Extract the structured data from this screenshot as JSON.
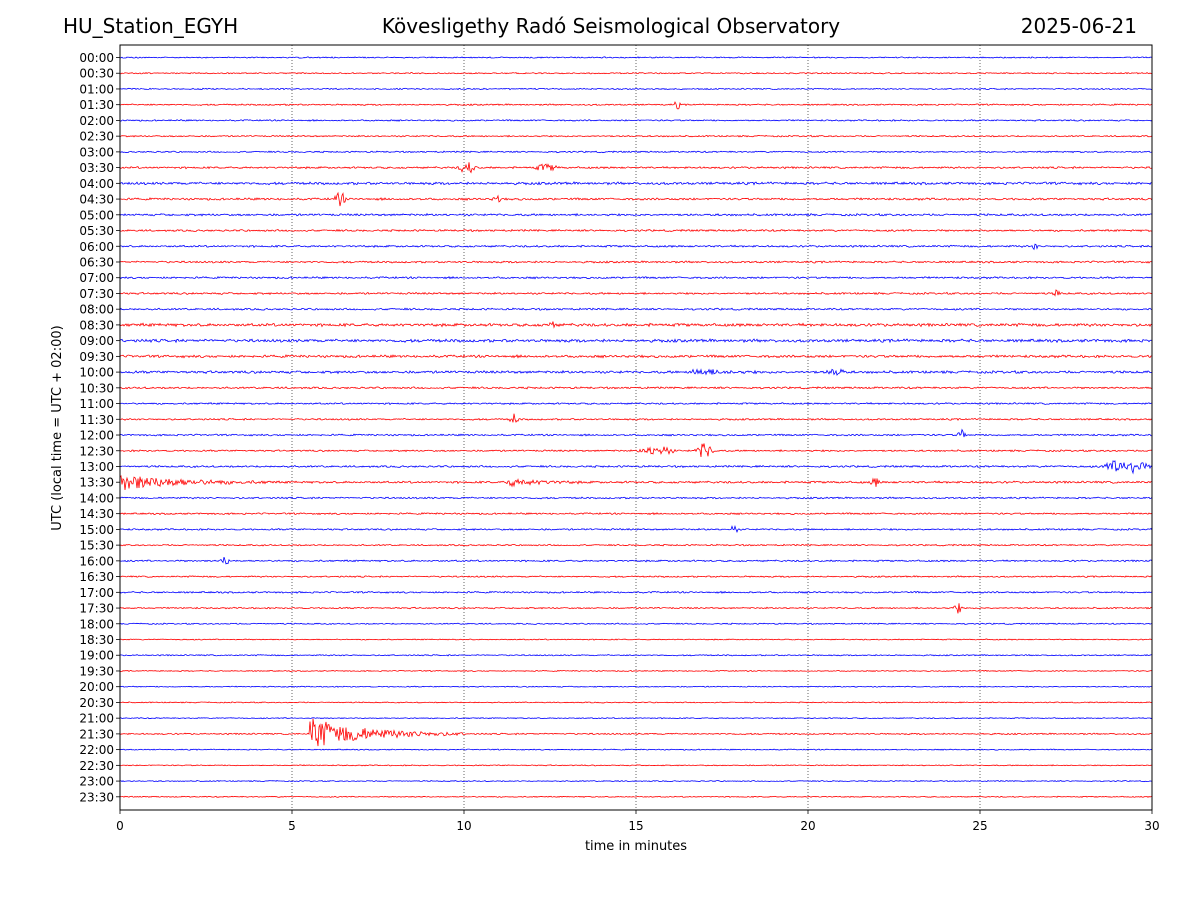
{
  "header": {
    "station": "HU_Station_EGYH",
    "observatory": "Kövesligethy Radó Seismological Observatory",
    "date": "2025-06-21"
  },
  "chart_data": {
    "type": "line",
    "title": "Kövesligethy Radó Seismological Observatory",
    "xlabel": "time in minutes",
    "ylabel": "UTC (local time = UTC + 02:00)",
    "xlim": [
      0,
      30
    ],
    "x_ticks": [
      0,
      5,
      10,
      15,
      20,
      25,
      30
    ],
    "x_gridlines": [
      5,
      10,
      15,
      20,
      25
    ],
    "grid": "vertical dotted",
    "legend": "none",
    "row_labels": [
      "00:00",
      "00:30",
      "01:00",
      "01:30",
      "02:00",
      "02:30",
      "03:00",
      "03:30",
      "04:00",
      "04:30",
      "05:00",
      "05:30",
      "06:00",
      "06:30",
      "07:00",
      "07:30",
      "08:00",
      "08:30",
      "09:00",
      "09:30",
      "10:00",
      "10:30",
      "11:00",
      "11:30",
      "12:00",
      "12:30",
      "13:00",
      "13:30",
      "14:00",
      "14:30",
      "15:00",
      "15:30",
      "16:00",
      "16:30",
      "17:00",
      "17:30",
      "18:00",
      "18:30",
      "19:00",
      "19:30",
      "20:00",
      "20:30",
      "21:00",
      "21:30",
      "22:00",
      "22:30",
      "23:00",
      "23:30"
    ],
    "trace_colors": [
      "#0000ff",
      "#ff0000"
    ],
    "noise_levels": [
      0.6,
      0.6,
      0.6,
      0.7,
      0.7,
      0.7,
      0.7,
      0.9,
      1.2,
      1.0,
      1.0,
      0.9,
      0.9,
      0.9,
      0.9,
      0.9,
      0.9,
      1.4,
      1.4,
      1.2,
      1.2,
      0.9,
      0.8,
      0.8,
      0.8,
      0.8,
      0.9,
      1.0,
      0.8,
      0.8,
      0.8,
      0.7,
      0.8,
      0.7,
      0.8,
      0.7,
      0.6,
      0.5,
      0.6,
      0.5,
      0.5,
      0.5,
      0.5,
      0.7,
      0.5,
      0.5,
      0.5,
      0.5
    ],
    "events": [
      {
        "row": "01:30",
        "minute": 16.1,
        "amplitude": 4,
        "duration": 0.2
      },
      {
        "row": "03:30",
        "minute": 9.8,
        "amplitude": 5,
        "duration": 0.6
      },
      {
        "row": "03:30",
        "minute": 12.0,
        "amplitude": 3,
        "duration": 0.8
      },
      {
        "row": "04:30",
        "minute": 6.2,
        "amplitude": 6,
        "duration": 0.4
      },
      {
        "row": "04:30",
        "minute": 10.8,
        "amplitude": 3,
        "duration": 0.3
      },
      {
        "row": "06:00",
        "minute": 26.5,
        "amplitude": 3,
        "duration": 0.2
      },
      {
        "row": "07:30",
        "minute": 27.1,
        "amplitude": 3,
        "duration": 0.3
      },
      {
        "row": "08:30",
        "minute": 12.4,
        "amplitude": 3,
        "duration": 0.3
      },
      {
        "row": "10:00",
        "minute": 16.6,
        "amplitude": 4,
        "duration": 2.0
      },
      {
        "row": "10:00",
        "minute": 20.5,
        "amplitude": 3,
        "duration": 0.6
      },
      {
        "row": "11:30",
        "minute": 11.3,
        "amplitude": 5,
        "duration": 0.3
      },
      {
        "row": "12:00",
        "minute": 24.3,
        "amplitude": 5,
        "duration": 0.3
      },
      {
        "row": "12:30",
        "minute": 15.0,
        "amplitude": 4,
        "duration": 1.2
      },
      {
        "row": "12:30",
        "minute": 16.7,
        "amplitude": 7,
        "duration": 0.6
      },
      {
        "row": "13:00",
        "minute": 28.5,
        "amplitude": 7,
        "duration": 1.5
      },
      {
        "row": "13:30",
        "minute": 0.0,
        "amplitude": 8,
        "duration": 4.5
      },
      {
        "row": "13:30",
        "minute": 11.2,
        "amplitude": 4,
        "duration": 2.5
      },
      {
        "row": "13:30",
        "minute": 21.8,
        "amplitude": 4,
        "duration": 0.3
      },
      {
        "row": "15:00",
        "minute": 17.7,
        "amplitude": 3,
        "duration": 0.3
      },
      {
        "row": "16:00",
        "minute": 2.9,
        "amplitude": 4,
        "duration": 0.3
      },
      {
        "row": "17:30",
        "minute": 24.2,
        "amplitude": 5,
        "duration": 0.3
      },
      {
        "row": "21:30",
        "minute": 5.5,
        "amplitude": 16,
        "duration": 4.5
      }
    ]
  }
}
